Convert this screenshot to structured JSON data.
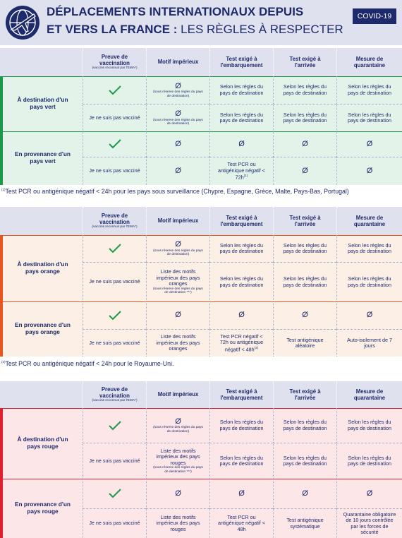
{
  "header": {
    "title_line1": "DÉPLACEMENTS INTERNATIONAUX DEPUIS",
    "title_line2_bold": "ET VERS LA FRANCE :",
    "title_line2_light": "LES RÈGLES À RESPECTER",
    "badge": "COVID-19"
  },
  "columns": [
    {
      "text": "Preuve de vaccination",
      "note": "(vaccins reconnus par l'EMA*)"
    },
    {
      "text": "Motif impérieux"
    },
    {
      "text": "Test exigé à l'embarquement"
    },
    {
      "text": "Test exigé à l'arrivée"
    },
    {
      "text": "Mesure de quarantaine"
    }
  ],
  "tables": [
    {
      "color": "#1a9a4a",
      "body": "#e4f3ea",
      "groups": [
        {
          "label": "À destination d'un pays vert",
          "rows": [
            [
              {
                "check": true
              },
              {
                "text": "Ø",
                "note": "(sous réserve des règles du pays de destination)"
              },
              "Selon les règles du pays de destination",
              "Selon les règles du pays de destination",
              "Selon les règles du pays de destination"
            ],
            [
              "Je ne suis pas vacciné",
              {
                "text": "Ø",
                "note": "(sous réserve des règles du pays de destination)"
              },
              "Selon les règles du pays de destination",
              "Selon les règles du pays de destination",
              "Selon les règles du pays de destination"
            ]
          ]
        },
        {
          "label": "En provenance d'un pays vert",
          "rows": [
            [
              {
                "check": true
              },
              "Ø",
              "Ø",
              "Ø",
              "Ø"
            ],
            [
              "Je ne suis pas vacciné",
              "Ø",
              {
                "text": "Test PCR ou antigénique négatif < 72h",
                "sup": "(1)"
              },
              "Ø",
              "Ø"
            ]
          ]
        }
      ],
      "footnote": {
        "sup": "(1)",
        "text": "Test PCR ou antigénique négatif < 24h pour les pays sous surveillance (Chypre, Espagne, Grèce, Malte, Pays-Bas, Portugal)"
      }
    },
    {
      "color": "#e8561f",
      "body": "#fcefe6",
      "groups": [
        {
          "label": "À destination d'un pays orange",
          "rows": [
            [
              {
                "check": true
              },
              {
                "text": "Ø",
                "note": "(sous réserve des règles du pays de destination)"
              },
              "Selon les règles du pays de destination",
              "Selon les règles du pays de destination",
              "Selon les règles du pays de destination"
            ],
            [
              "Je ne suis pas vacciné",
              {
                "text": "Liste des motifs impérieux des pays oranges",
                "note": "(sous réserve des règles du pays de destination ***)"
              },
              "Selon les règles du pays de destination",
              "Selon les règles du pays de destination",
              "Selon les règles du pays de destination"
            ]
          ]
        },
        {
          "label": "En provenance d'un pays orange",
          "rows": [
            [
              {
                "check": true
              },
              "Ø",
              "Ø",
              "Ø",
              "Ø"
            ],
            [
              "Je ne suis pas vacciné",
              "Liste des motifs impérieux des pays oranges",
              {
                "text": "Test PCR négatif < 72h ou antigénique négatif < 48h",
                "sup": "(2)"
              },
              "Test antigénique aléatoire",
              "Auto-isolement de 7 jours"
            ]
          ]
        }
      ],
      "footnote": {
        "sup": "(2)",
        "text": "Test PCR ou antigénique négatif < 24h pour le Royaume-Uni."
      }
    },
    {
      "color": "#e0202e",
      "body": "#fce6e8",
      "groups": [
        {
          "label": "À destination d'un pays rouge",
          "rows": [
            [
              {
                "check": true
              },
              {
                "text": "Ø",
                "note": "(sous réserve des règles du pays de destination)"
              },
              "Selon les règles du pays de destination",
              "Selon les règles du pays de destination",
              "Selon les règles du pays de destination"
            ],
            [
              "Je ne suis pas vacciné",
              {
                "text": "Liste des motifs impérieux des pays rouges",
                "note": "(sous réserve des règles du pays de destination ***)"
              },
              "Selon les règles du pays de destination",
              "Selon les règles du pays de destination",
              "Selon les règles du pays de destination"
            ]
          ]
        },
        {
          "label": "En provenance d'un pays rouge",
          "rows": [
            [
              {
                "check": true
              },
              "Ø",
              "Ø",
              "Ø",
              "Ø"
            ],
            [
              "Je ne suis pas vacciné",
              "Liste des motifs impérieux des pays rouges",
              "Test PCR ou antigénique négatif < 48h",
              "Test antigénique systématique",
              "Quarantaine obligatoire de 10 jours contrôlée par les forces de sécurité"
            ]
          ]
        }
      ]
    }
  ]
}
